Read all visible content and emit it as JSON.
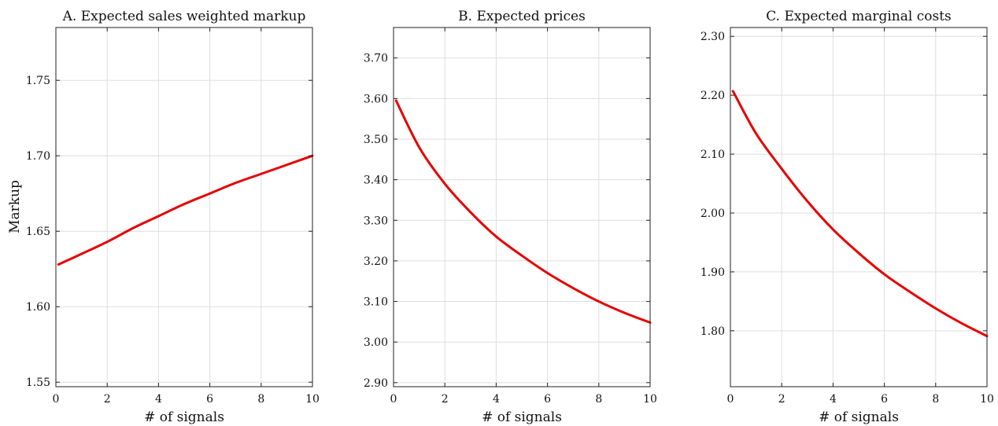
{
  "chart_data": [
    {
      "type": "line",
      "title": "A. Expected sales weighted markup",
      "xlabel": "# of signals",
      "ylabel": "Markup",
      "xlim": [
        0,
        10
      ],
      "ylim": [
        1.547,
        1.785
      ],
      "xticks": [
        "0",
        "2",
        "4",
        "6",
        "8",
        "10"
      ],
      "yticks": [
        "1.55",
        "1.60",
        "1.65",
        "1.70",
        "1.75"
      ],
      "grid": true,
      "series": [
        {
          "color": "#e50000",
          "x": [
            0.1,
            1,
            2,
            3,
            4,
            5,
            6,
            7,
            8,
            9,
            10
          ],
          "y": [
            1.628,
            1.635,
            1.643,
            1.652,
            1.66,
            1.668,
            1.675,
            1.682,
            1.688,
            1.694,
            1.7
          ]
        }
      ]
    },
    {
      "type": "line",
      "title": "B. Expected prices",
      "xlabel": "# of signals",
      "ylabel": "",
      "xlim": [
        0,
        10
      ],
      "ylim": [
        2.89,
        3.775
      ],
      "xticks": [
        "0",
        "2",
        "4",
        "6",
        "8",
        "10"
      ],
      "yticks": [
        "2.90",
        "3.00",
        "3.10",
        "3.20",
        "3.30",
        "3.40",
        "3.50",
        "3.60",
        "3.70"
      ],
      "grid": true,
      "series": [
        {
          "color": "#e50000",
          "x": [
            0.1,
            1,
            2,
            3,
            4,
            5,
            6,
            7,
            8,
            9,
            10
          ],
          "y": [
            3.595,
            3.48,
            3.39,
            3.32,
            3.26,
            3.213,
            3.17,
            3.133,
            3.1,
            3.072,
            3.048
          ]
        }
      ]
    },
    {
      "type": "line",
      "title": "C. Expected marginal costs",
      "xlabel": "# of signals",
      "ylabel": "",
      "xlim": [
        0,
        10
      ],
      "ylim": [
        1.705,
        2.315
      ],
      "xticks": [
        "0",
        "2",
        "4",
        "6",
        "8",
        "10"
      ],
      "yticks": [
        "1.80",
        "1.90",
        "2.00",
        "2.10",
        "2.20",
        "2.30"
      ],
      "grid": true,
      "series": [
        {
          "color": "#e50000",
          "x": [
            0.1,
            1,
            2,
            3,
            4,
            5,
            6,
            7,
            8,
            9,
            10
          ],
          "y": [
            2.207,
            2.135,
            2.075,
            2.02,
            1.972,
            1.932,
            1.896,
            1.866,
            1.838,
            1.813,
            1.791
          ]
        }
      ]
    }
  ]
}
